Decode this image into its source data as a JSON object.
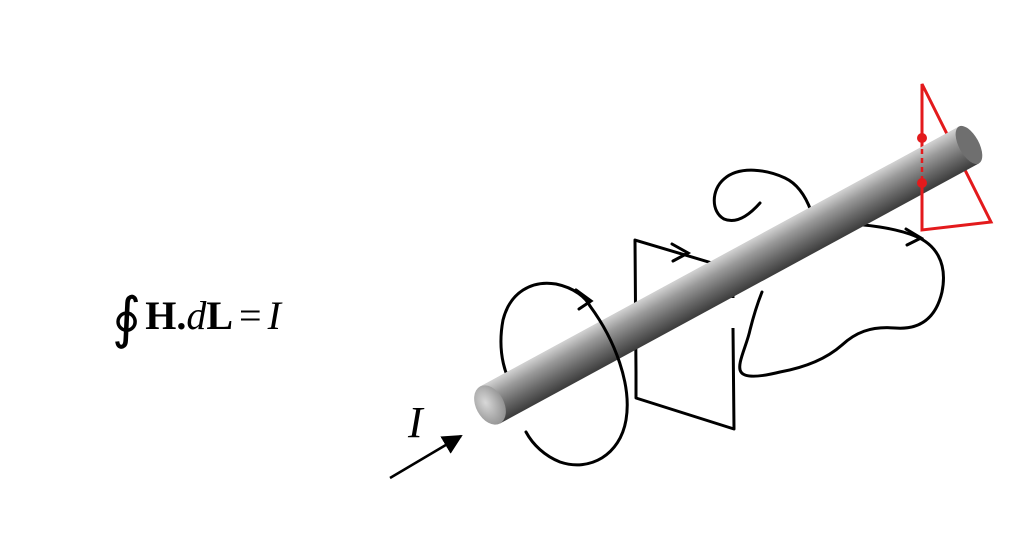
{
  "equation": {
    "integral": "∮",
    "field": "H",
    "dot": ".",
    "differential": "d",
    "element": "L",
    "equals": "=",
    "rhs": "I"
  },
  "current_label": "I",
  "colors": {
    "path": "#000000",
    "highlight": "#e31a1c",
    "wire_light": "#d4d4d4",
    "wire_dark": "#4a4a4a"
  }
}
